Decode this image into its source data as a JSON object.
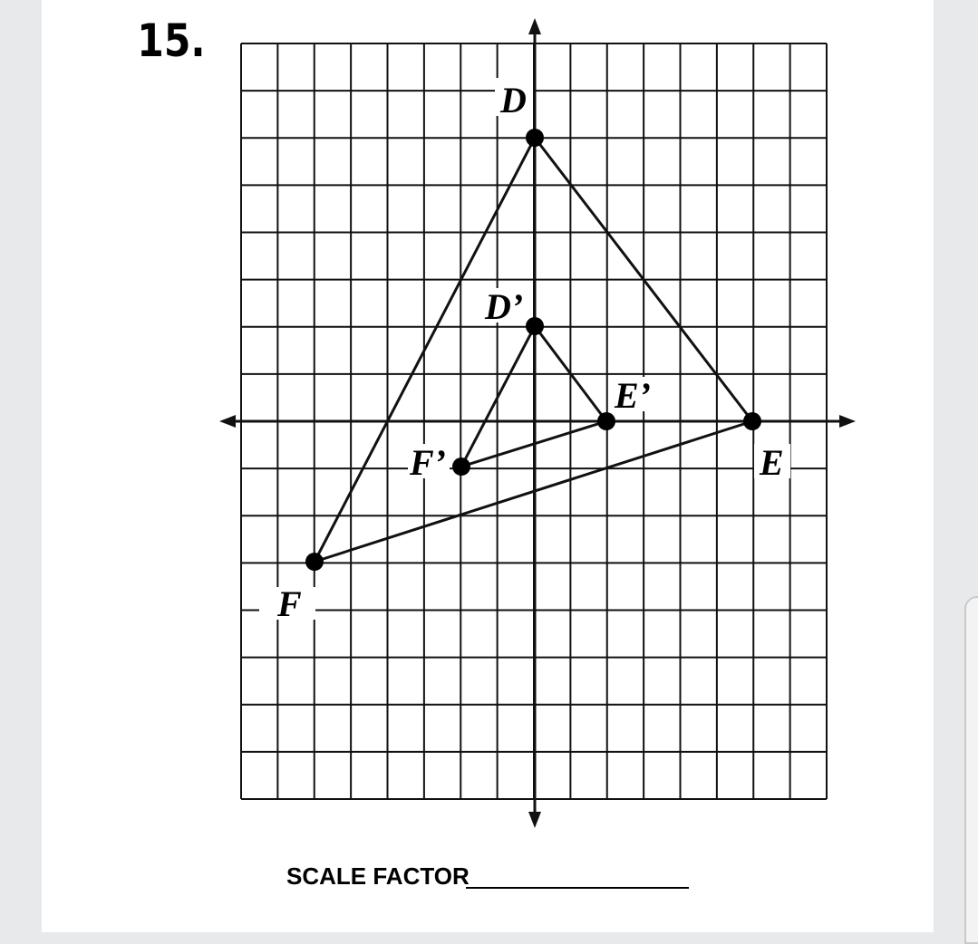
{
  "problem_number": "15.",
  "graph": {
    "points": [
      {
        "label": "D"
      },
      {
        "label": "D’"
      },
      {
        "label": "E’"
      },
      {
        "label": "E"
      },
      {
        "label": "F’"
      },
      {
        "label": "F"
      }
    ]
  },
  "answer_prompt": "SCALE FACTOR"
}
